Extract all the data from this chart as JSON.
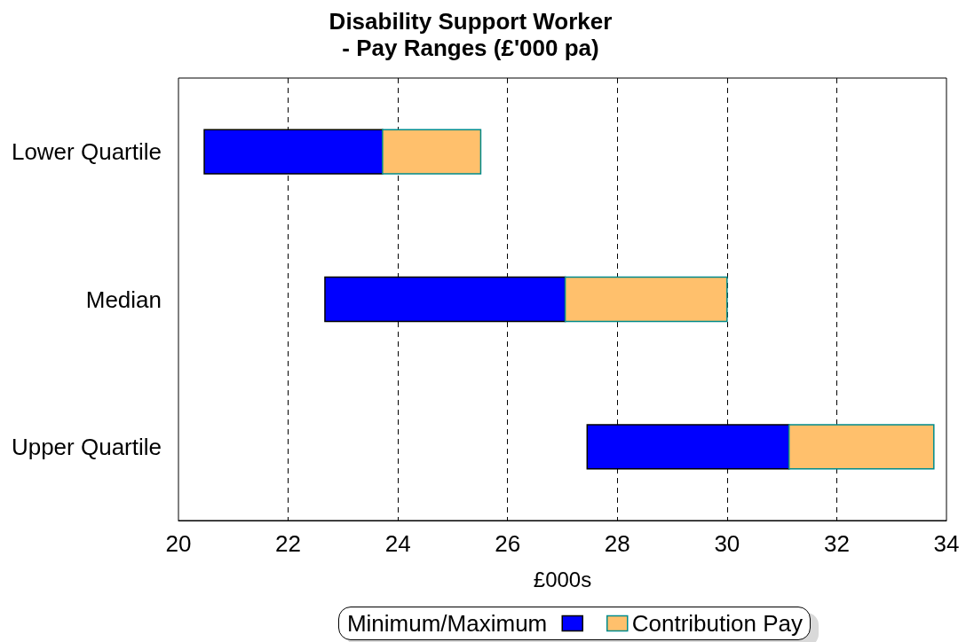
{
  "chart_data": {
    "type": "bar",
    "title": "Disability Support Worker\n- Pay Ranges (£'000 pa)",
    "xlabel": "£000s",
    "categories": [
      "Lower Quartile",
      "Median",
      "Upper Quartile"
    ],
    "orientation": "horizontal",
    "series": [
      {
        "name": "Minimum/Maximum",
        "color": "#0000ff",
        "base": [
          20.47,
          22.67,
          27.45
        ],
        "values": [
          3.25,
          4.38,
          3.68
        ]
      },
      {
        "name": "Contribution Pay",
        "color": "#ffc06c",
        "base": [
          23.72,
          27.05,
          31.13
        ],
        "values": [
          1.79,
          2.95,
          2.64
        ]
      }
    ],
    "xlim": [
      20,
      34
    ],
    "xticks": [
      20,
      22,
      24,
      26,
      28,
      30,
      32,
      34
    ],
    "grid": "x",
    "legend": "bottom"
  }
}
